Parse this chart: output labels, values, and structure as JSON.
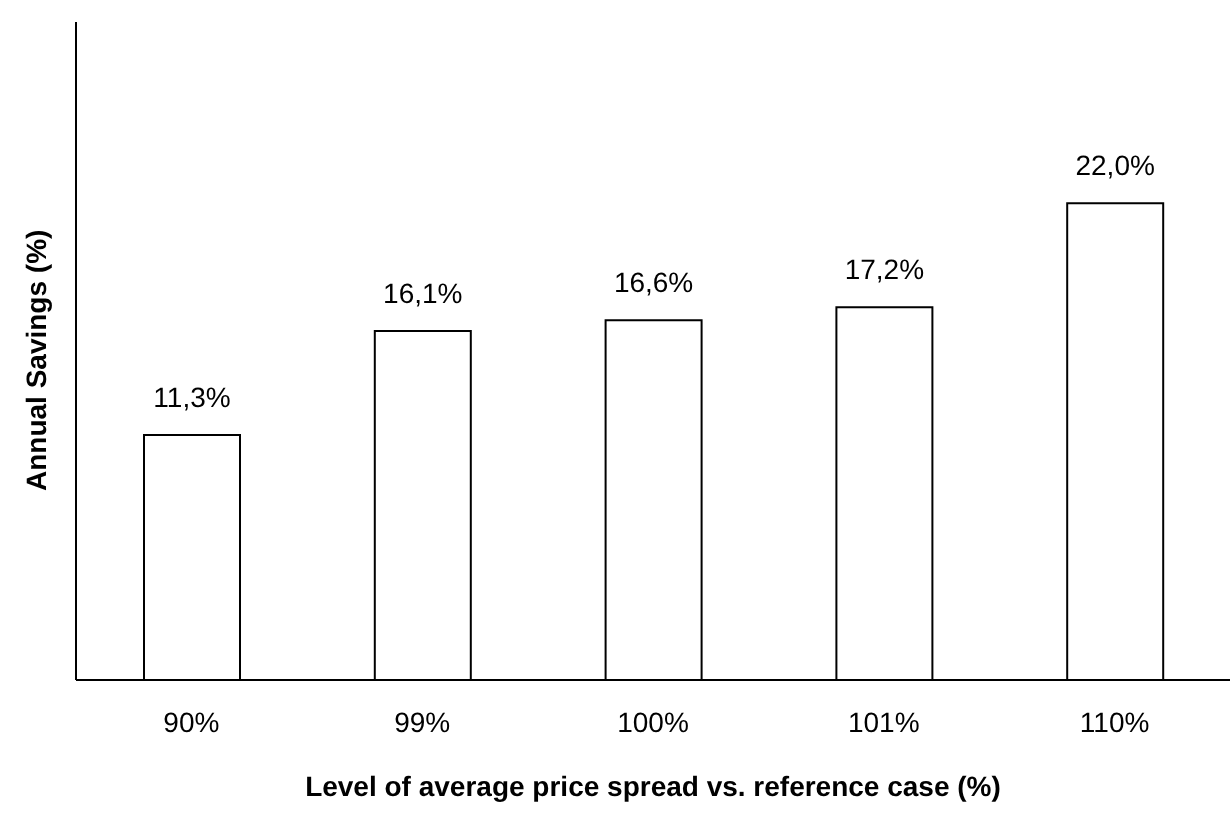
{
  "chart_data": {
    "type": "bar",
    "xlabel": "Level of average price spread vs. reference case (%)",
    "ylabel": "Annual Savings (%)",
    "categories": [
      "90%",
      "99%",
      "100%",
      "101%",
      "110%"
    ],
    "values": [
      11.3,
      16.1,
      16.6,
      17.2,
      22.0
    ],
    "value_labels": [
      "11,3%",
      "16,1%",
      "16,6%",
      "17,2%",
      "22,0%"
    ],
    "color": "#ffffff",
    "grid": false,
    "legend": false
  }
}
